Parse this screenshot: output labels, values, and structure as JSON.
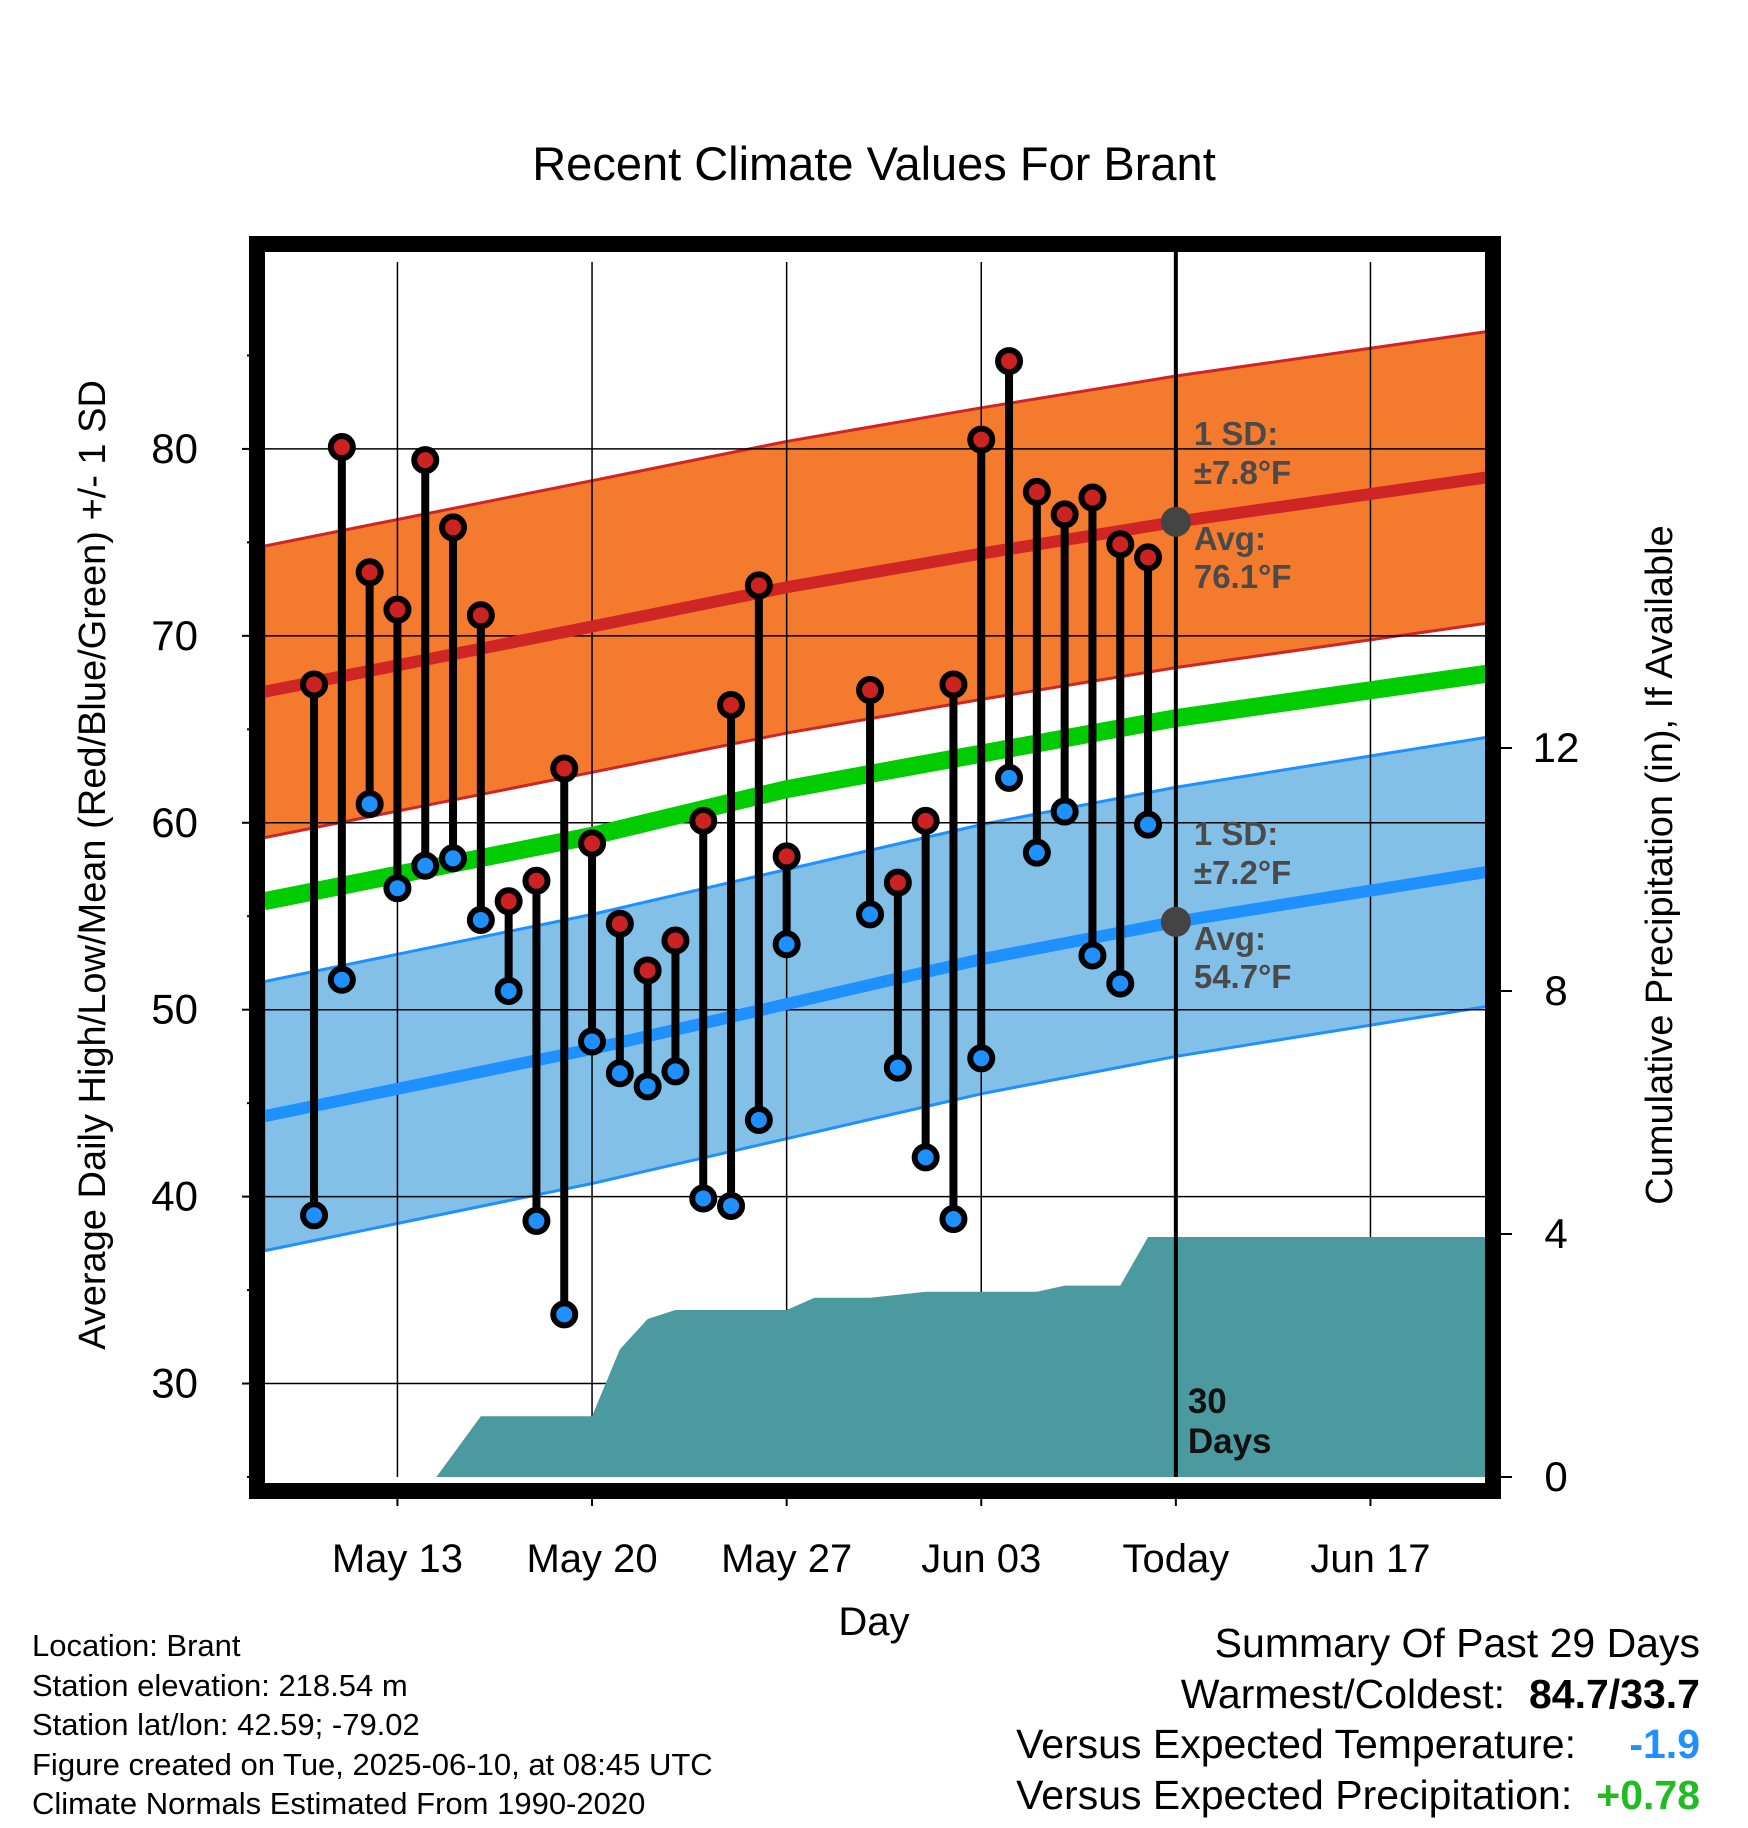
{
  "chart_data": {
    "type": "line",
    "title": "Recent Climate Values For Brant",
    "xlabel": "Day",
    "ylabel": "Average Daily High/Low/Mean (Red/Blue/Green) +/- 1 SD",
    "y2label": "Cumulative Precipitation (in), If Available",
    "ylim": [
      25,
      90
    ],
    "y2lim": [
      0,
      20
    ],
    "y_ticks": [
      "30",
      "40",
      "50",
      "60",
      "70",
      "80"
    ],
    "y2_ticks": [
      "0",
      "4",
      "8",
      "12"
    ],
    "x_tick_labels": [
      "May 13",
      "May 20",
      "May 27",
      "Jun 03",
      "Today",
      "Jun 17"
    ],
    "x_range_days": [
      -32.8,
      11.3
    ],
    "x_tick_days": [
      -28,
      -21,
      -14,
      -7,
      0,
      7
    ],
    "grid": true,
    "normals": {
      "day": [
        -32.8,
        -21,
        -14,
        -7,
        0,
        11.3
      ],
      "avg_high": [
        67.0,
        70.5,
        72.6,
        74.4,
        76.1,
        78.5
      ],
      "avg_mean": [
        55.8,
        59.3,
        61.8,
        63.7,
        65.6,
        68.0
      ],
      "avg_low": [
        44.3,
        47.9,
        50.3,
        52.7,
        54.7,
        57.4
      ],
      "high_sd": 7.8,
      "low_sd": 7.2
    },
    "series": [
      {
        "name": "High",
        "color": "#cc2222",
        "x": [
          -31,
          -30,
          -29,
          -28,
          -27,
          -26,
          -25,
          -24,
          -23,
          -22,
          -21,
          -20,
          -19,
          -18,
          -17,
          -16,
          -15,
          -14,
          -13,
          -11,
          -10,
          -9,
          -8,
          -7,
          -6,
          -5,
          -4,
          -3,
          -2,
          -1
        ],
        "values": [
          67.4,
          80.1,
          73.4,
          71.4,
          79.4,
          75.8,
          71.1,
          55.8,
          56.9,
          62.9,
          58.9,
          54.6,
          52.1,
          53.7,
          60.1,
          66.3,
          72.7,
          58.2,
          null,
          67.1,
          56.8,
          60.1,
          67.4,
          80.5,
          84.7,
          77.7,
          76.5,
          77.4,
          74.9,
          74.2
        ]
      },
      {
        "name": "Low",
        "color": "#1e90ff",
        "x": [
          -31,
          -30,
          -29,
          -28,
          -27,
          -26,
          -25,
          -24,
          -23,
          -22,
          -21,
          -20,
          -19,
          -18,
          -17,
          -16,
          -15,
          -14,
          -13,
          -11,
          -10,
          -9,
          -8,
          -7,
          -6,
          -5,
          -4,
          -3,
          -2,
          -1
        ],
        "values": [
          39.0,
          51.6,
          61.0,
          56.5,
          57.7,
          58.1,
          54.8,
          51.0,
          38.7,
          33.7,
          48.3,
          46.6,
          45.9,
          46.7,
          39.9,
          39.5,
          44.1,
          53.5,
          null,
          55.1,
          46.9,
          42.1,
          38.8,
          47.4,
          62.4,
          58.4,
          60.6,
          52.9,
          51.4,
          59.9
        ]
      }
    ],
    "precipitation": {
      "day": [
        -32.8,
        -26.6,
        -25.0,
        -23.5,
        -22.0,
        -21.0,
        -20.0,
        -19.0,
        -18.0,
        -17.0,
        -14.0,
        -13.0,
        -11.0,
        -9.0,
        -5.0,
        -4.0,
        -2.0,
        -1.0,
        0.0,
        11.3
      ],
      "cumulative_in": [
        0.0,
        0.0,
        1.0,
        1.0,
        1.0,
        1.0,
        2.1,
        2.6,
        2.75,
        2.75,
        2.75,
        2.95,
        2.95,
        3.05,
        3.05,
        3.15,
        3.15,
        3.95,
        3.95,
        3.95
      ]
    },
    "annotations": {
      "high_sd_label": "1 SD:",
      "high_sd_value": "±7.8°F",
      "high_avg_label": "Avg:",
      "high_avg_value": "76.1°F",
      "low_sd_label": "1 SD:",
      "low_sd_value": "±7.2°F",
      "low_avg_label": "Avg:",
      "low_avg_value": "54.7°F",
      "period_count": "30",
      "period_unit": "Days"
    },
    "colors": {
      "high_band": "#f47a2e",
      "high_line": "#d02525",
      "mean_line": "#00cc00",
      "low_band": "#82c0e8",
      "low_line": "#1e90ff",
      "precip": "#4a9aa0",
      "marker_outline": "#000000",
      "today_marker": "#444444"
    }
  },
  "station_info": {
    "location": "Location: Brant",
    "elevation": "Station elevation: 218.54 m",
    "latlon": "Station lat/lon: 42.59; -79.02",
    "created": "Figure created on Tue, 2025-06-10, at 08:45 UTC",
    "normals": "Climate Normals Estimated From 1990-2020"
  },
  "summary": {
    "title": "Summary Of Past 29 Days",
    "warmest_coldest_label": "Warmest/Coldest:",
    "warmest_coldest_value": "84.7/33.7",
    "temp_label": "Versus Expected Temperature:",
    "temp_value": "-1.9",
    "precip_label": "Versus Expected Precipitation:",
    "precip_value": "+0.78"
  }
}
